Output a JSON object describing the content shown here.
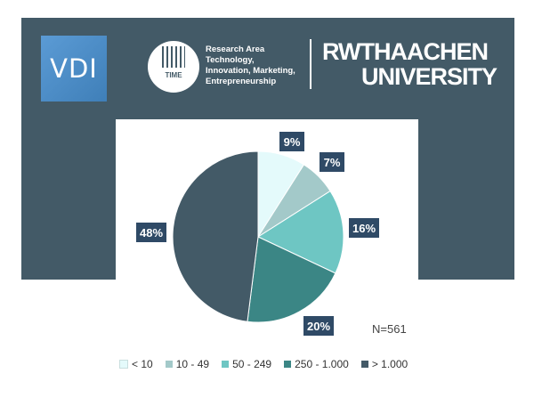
{
  "header": {
    "vdi_logo_text": "VDI",
    "time_logo_text": "TIME",
    "research_lines": [
      "Research Area",
      "Technology,",
      "Innovation, Marketing,",
      "Entrepreneurship"
    ],
    "university_line1": "RWTHAACHEN",
    "university_line2": "UNIVERSITY"
  },
  "chart_data": {
    "type": "pie",
    "categories": [
      "< 10",
      "10 - 49",
      "50 - 249",
      "250 - 1.000",
      "> 1.000"
    ],
    "values": [
      9,
      7,
      16,
      20,
      48
    ],
    "data_labels": [
      "9%",
      "7%",
      "16%",
      "20%",
      "48%"
    ],
    "colors": [
      "#e4fafb",
      "#a3c9c9",
      "#6ec6c3",
      "#3b8685",
      "#435a67"
    ],
    "annotation": "N=561",
    "legend_position": "bottom"
  }
}
